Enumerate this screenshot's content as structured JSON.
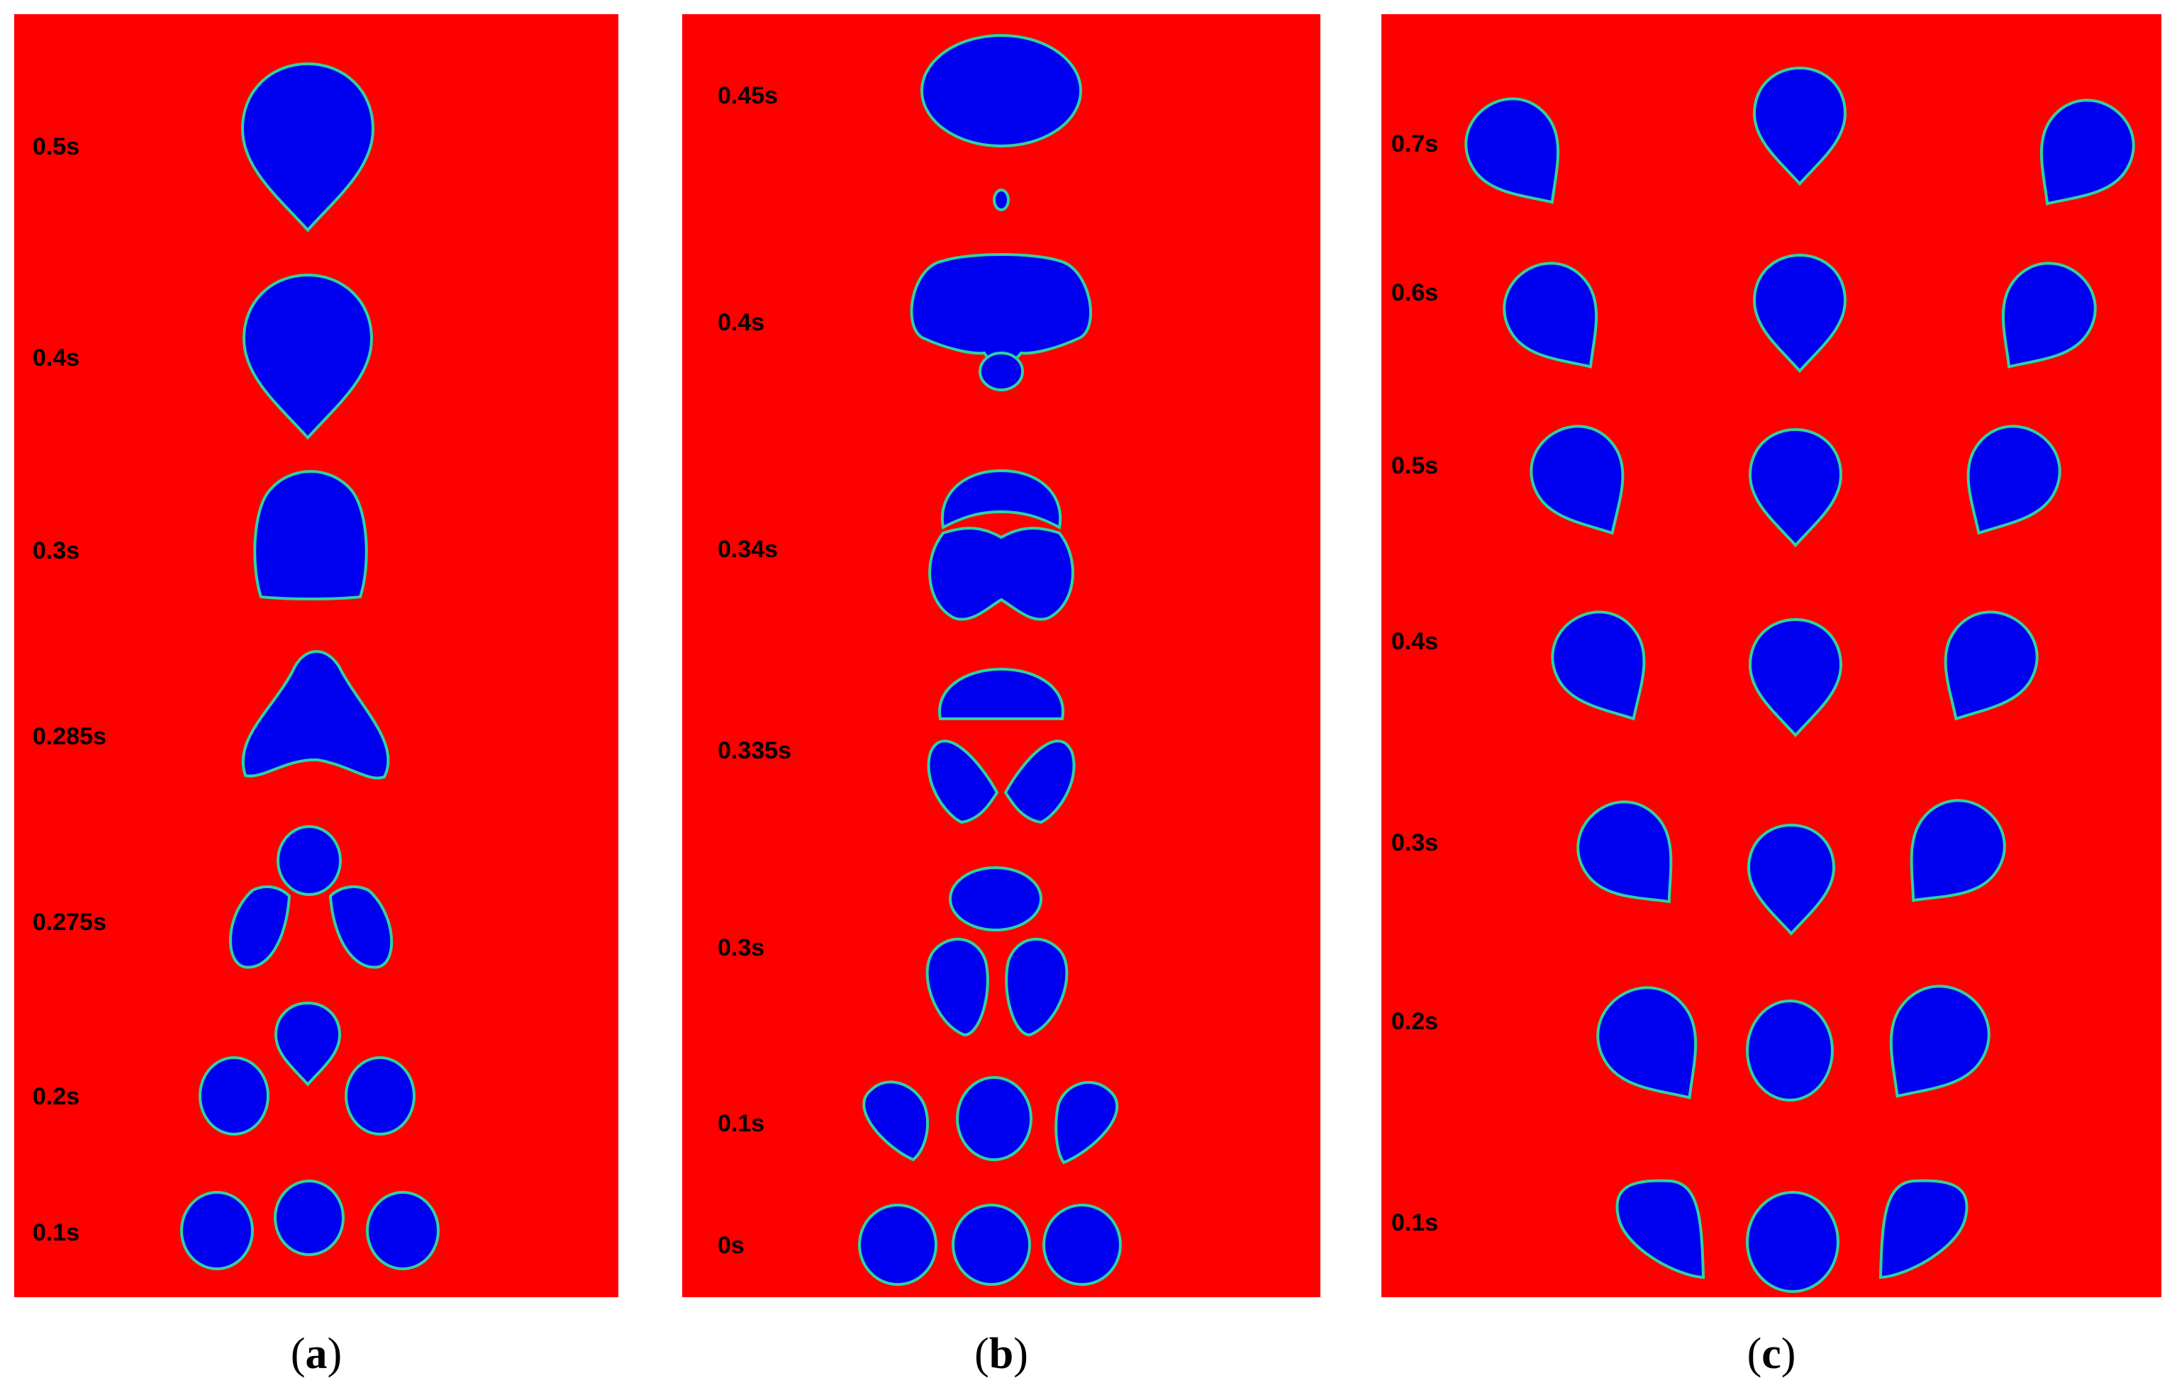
{
  "colors": {
    "liquid": "#ff0000",
    "bubble": "#0000f0",
    "interface": "#2fd2a0",
    "label": "#000000"
  },
  "panels": [
    {
      "caption_letter": "a",
      "time_labels": [
        "0.5s",
        "0.4s",
        "0.3s",
        "0.285s",
        "0.275s",
        "0.2s",
        "0.1s"
      ]
    },
    {
      "caption_letter": "b",
      "time_labels": [
        "0.45s",
        "0.4s",
        "0.34s",
        "0.335s",
        "0.3s",
        "0.1s",
        "0s"
      ]
    },
    {
      "caption_letter": "c",
      "time_labels": [
        "0.7s",
        "0.6s",
        "0.5s",
        "0.4s",
        "0.3s",
        "0.2s",
        "0.1s"
      ]
    }
  ]
}
